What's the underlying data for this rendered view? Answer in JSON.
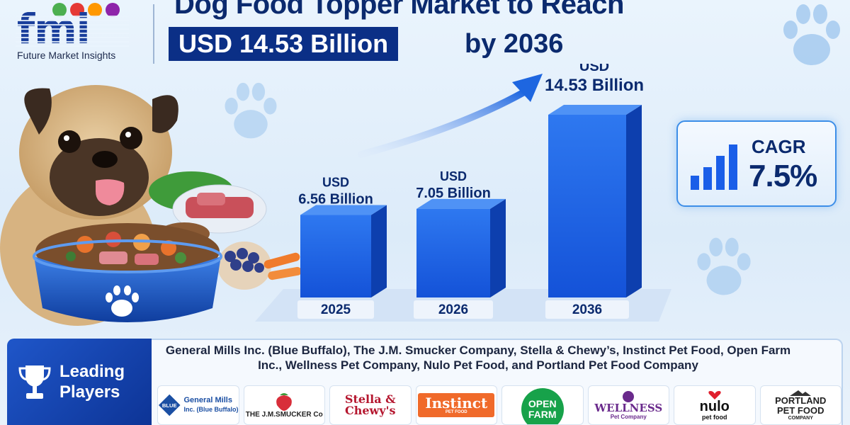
{
  "brand": {
    "logo_mark": "fmi",
    "name": "Future Market Insights",
    "dot_colors": [
      "#4caf50",
      "#e53935",
      "#ff9800",
      "#8e24aa"
    ]
  },
  "title": {
    "line1": "Dog Food Topper Market to Reach",
    "highlight": "USD 14.53 Billion",
    "suffix": "by 2036"
  },
  "chart_data": {
    "type": "bar",
    "categories": [
      "2025",
      "2026",
      "2036"
    ],
    "values": [
      6.56,
      7.05,
      14.53
    ],
    "label_prefix": "USD",
    "labels": [
      "6.56 Billion",
      "7.05 Billion",
      "14.53 Billion"
    ],
    "bar_color": "#1a5ee8",
    "trend_arrow": true
  },
  "cagr": {
    "label": "CAGR",
    "value": "7.5%"
  },
  "players": {
    "heading": "Leading Players",
    "heading_line1": "Leading",
    "heading_line2": "Players",
    "text": "General Mills Inc. (Blue Buffalo), The J.M. Smucker Company, Stella & Chewy’s, Instinct Pet Food, Open Farm Inc., Wellness Pet Company, Nulo Pet Food, and Portland Pet Food Company",
    "logos": [
      {
        "name": "General Mills Inc. (Blue Buffalo)",
        "line1": "General Mills",
        "line2": "Inc. (Blue Buffalo)",
        "badge": "BLUE"
      },
      {
        "name": "THE J.M.SMUCKER Co"
      },
      {
        "name": "Stella & Chewy's",
        "line1": "Stella &",
        "line2": "Chewy's"
      },
      {
        "name": "Instinct",
        "sub": "PET FOOD"
      },
      {
        "name": "OPEN FARM",
        "line1": "OPEN",
        "line2": "FARM"
      },
      {
        "name": "WELLNESS",
        "sub": "Pet Company"
      },
      {
        "name": "nulo",
        "sub": "pet food"
      },
      {
        "name": "PORTLAND PET FOOD",
        "line1": "PORTLAND",
        "line2": "PET FOOD",
        "sub": "COMPANY"
      }
    ]
  },
  "colors": {
    "navy": "#0b2f86",
    "accent_blue": "#1a5ee8",
    "paw": "#a9cdf0"
  }
}
